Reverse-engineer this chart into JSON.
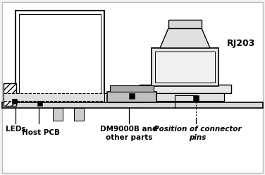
{
  "bg_color": "#f2f2f2",
  "diagram_bg": "#ffffff",
  "line_color": "#000000",
  "title": "RJ203",
  "label_leds": "LEDs",
  "label_host": "Host PCB",
  "label_dm": "DM9000B and\nother parts",
  "label_pos": "Position of connector\npins",
  "border_color": "#bbbbbb"
}
